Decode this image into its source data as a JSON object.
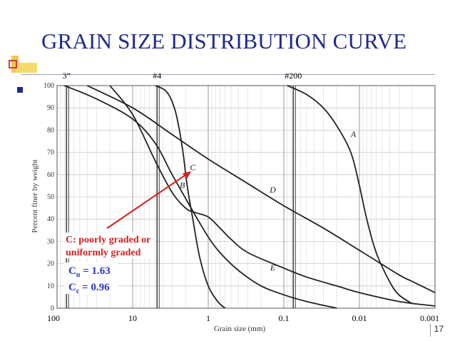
{
  "slide": {
    "title": "GRAIN SIZE DISTRIBUTION CURVE",
    "page_number": "17"
  },
  "annotations": {
    "poorly_graded_line1": "C: poorly graded or",
    "poorly_graded_line2": "uniformly graded",
    "cu_symbol": "C",
    "cu_sub": "u",
    "cu_value": " = 1.63",
    "cc_symbol": "C",
    "cc_sub": "c",
    "cc_value": " = 0.96",
    "arrow_color": "#d42020",
    "blue_color": "#2a35c0"
  },
  "chart_data": {
    "type": "line",
    "xlabel": "Grain size (mm)",
    "ylabel": "Percent finer by weight",
    "x_scale": "log",
    "x_reversed": true,
    "xlim": [
      100,
      0.001
    ],
    "ylim": [
      0,
      100
    ],
    "x_ticks": [
      "100",
      "10",
      "1",
      "0.1",
      "0.01",
      "0.001"
    ],
    "y_ticks": [
      "0",
      "10",
      "20",
      "30",
      "40",
      "50",
      "60",
      "70",
      "80",
      "90",
      "100"
    ],
    "sieve_markers": [
      {
        "label": "3”",
        "size": 75
      },
      {
        "label": "#4",
        "size": 4.75
      },
      {
        "label": "#200",
        "size": 0.075
      }
    ],
    "series": [
      {
        "name": "A",
        "points": [
          [
            0.09,
            100
          ],
          [
            0.05,
            96
          ],
          [
            0.03,
            90
          ],
          [
            0.02,
            82
          ],
          [
            0.013,
            70
          ],
          [
            0.01,
            55
          ],
          [
            0.008,
            40
          ],
          [
            0.006,
            25
          ],
          [
            0.004,
            12
          ],
          [
            0.003,
            6
          ],
          [
            0.002,
            2
          ]
        ]
      },
      {
        "name": "B",
        "points": [
          [
            20,
            100
          ],
          [
            10,
            87
          ],
          [
            5,
            66
          ],
          [
            3,
            52
          ],
          [
            2,
            45
          ],
          [
            1.5,
            43
          ],
          [
            1,
            41
          ],
          [
            0.7,
            36
          ],
          [
            0.5,
            31
          ],
          [
            0.3,
            25
          ],
          [
            0.1,
            18
          ],
          [
            0.05,
            14
          ],
          [
            0.02,
            10
          ],
          [
            0.01,
            7
          ],
          [
            0.003,
            3
          ],
          [
            0.001,
            1
          ]
        ]
      },
      {
        "name": "C",
        "points": [
          [
            5,
            100
          ],
          [
            3.5,
            97
          ],
          [
            2.7,
            88
          ],
          [
            2.2,
            72
          ],
          [
            1.9,
            55
          ],
          [
            1.6,
            40
          ],
          [
            1.3,
            23
          ],
          [
            1.0,
            10
          ],
          [
            0.75,
            3
          ],
          [
            0.6,
            0
          ]
        ]
      },
      {
        "name": "D",
        "points": [
          [
            40,
            100
          ],
          [
            10,
            90
          ],
          [
            3,
            78
          ],
          [
            1,
            67
          ],
          [
            0.3,
            56
          ],
          [
            0.1,
            46
          ],
          [
            0.03,
            36
          ],
          [
            0.01,
            26
          ],
          [
            0.003,
            15
          ],
          [
            0.002,
            12
          ],
          [
            0.001,
            7
          ]
        ]
      },
      {
        "name": "E",
        "points": [
          [
            80,
            100
          ],
          [
            30,
            94
          ],
          [
            10,
            85
          ],
          [
            5,
            74
          ],
          [
            3,
            60
          ],
          [
            1.5,
            42
          ],
          [
            1,
            32
          ],
          [
            0.7,
            25
          ],
          [
            0.4,
            17
          ],
          [
            0.2,
            10
          ],
          [
            0.1,
            6
          ],
          [
            0.05,
            3
          ],
          [
            0.02,
            0
          ]
        ]
      }
    ],
    "label_positions": {
      "A": [
        0.012,
        77
      ],
      "B": [
        2.2,
        54
      ],
      "C": [
        1.6,
        62
      ],
      "D": [
        0.14,
        52
      ],
      "E": [
        0.14,
        17
      ]
    },
    "grid": true
  }
}
